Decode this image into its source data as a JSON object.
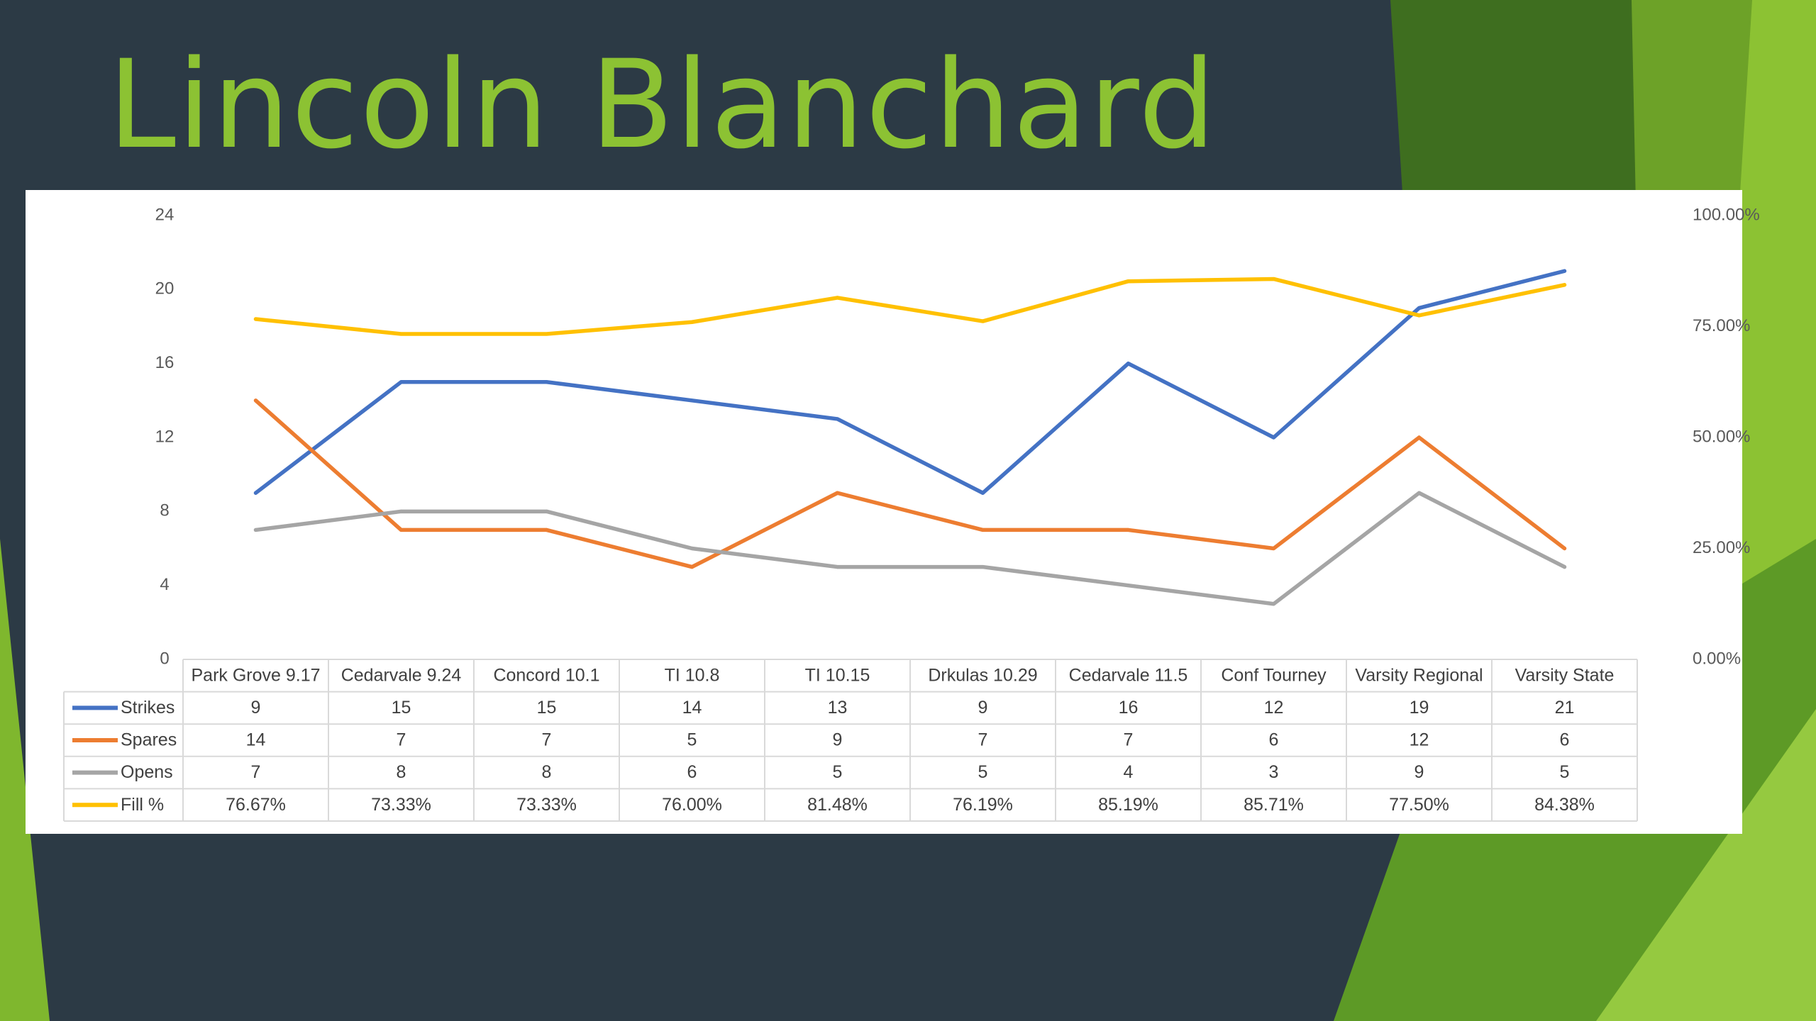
{
  "slide": {
    "title": "Lincoln Blanchard",
    "colors": {
      "background": "#2c3a45",
      "title": "#8cc233",
      "accent_green": "#8cc233",
      "dark_green": "#3f6e1f"
    }
  },
  "chart_data": {
    "type": "line",
    "categories": [
      "Park Grove 9.17",
      "Cedarvale 9.24",
      "Concord 10.1",
      "TI 10.8",
      "TI 10.15",
      "Drkulas 10.29",
      "Cedarvale 11.5",
      "Conf Tourney",
      "Varsity Regional",
      "Varsity State"
    ],
    "series": [
      {
        "name": "Strikes",
        "axis": "left",
        "color": "#4472c4",
        "values": [
          9,
          15,
          15,
          14,
          13,
          9,
          16,
          12,
          19,
          21
        ]
      },
      {
        "name": "Spares",
        "axis": "left",
        "color": "#ed7d31",
        "values": [
          14,
          7,
          7,
          5,
          9,
          7,
          7,
          6,
          12,
          6
        ]
      },
      {
        "name": "Opens",
        "axis": "left",
        "color": "#a5a5a5",
        "values": [
          7,
          8,
          8,
          6,
          5,
          5,
          4,
          3,
          9,
          5
        ]
      },
      {
        "name": "Fill %",
        "axis": "right",
        "color": "#ffc000",
        "values": [
          76.67,
          73.33,
          73.33,
          76.0,
          81.48,
          76.19,
          85.19,
          85.71,
          77.5,
          84.38
        ]
      }
    ],
    "table_rows": [
      [
        "9",
        "15",
        "15",
        "14",
        "13",
        "9",
        "16",
        "12",
        "19",
        "21"
      ],
      [
        "14",
        "7",
        "7",
        "5",
        "9",
        "7",
        "7",
        "6",
        "12",
        "6"
      ],
      [
        "7",
        "8",
        "8",
        "6",
        "5",
        "5",
        "4",
        "3",
        "9",
        "5"
      ],
      [
        "76.67%",
        "73.33%",
        "73.33%",
        "76.00%",
        "81.48%",
        "76.19%",
        "85.19%",
        "85.71%",
        "77.50%",
        "84.38%"
      ]
    ],
    "ylim": [
      0,
      24
    ],
    "y_ticks": [
      "0",
      "4",
      "8",
      "12",
      "16",
      "20",
      "24"
    ],
    "y2lim": [
      0,
      100
    ],
    "y2_ticks": [
      "0.00%",
      "25.00%",
      "50.00%",
      "75.00%",
      "100.00%"
    ],
    "grid": false,
    "legend": "data table"
  }
}
